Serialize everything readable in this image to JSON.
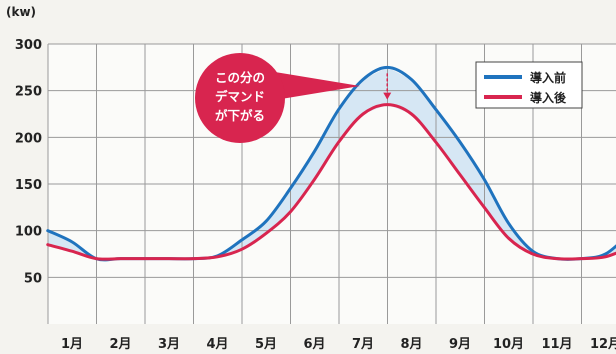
{
  "chart_data": {
    "type": "line",
    "unit_label": "(kw)",
    "categories": [
      "1月",
      "2月",
      "3月",
      "4月",
      "5月",
      "6月",
      "7月",
      "8月",
      "9月",
      "10月",
      "11月",
      "12月"
    ],
    "y_ticks": [
      300,
      250,
      200,
      150,
      100,
      50
    ],
    "ylim": [
      0,
      300
    ],
    "grid": true,
    "legend_position": "top-right",
    "series": [
      {
        "name": "導入前",
        "color": "#1f73be",
        "x": [
          0.5,
          1.0,
          1.5,
          2.0,
          2.5,
          3.0,
          3.5,
          4.0,
          4.5,
          5.0,
          5.5,
          6.0,
          6.5,
          7.0,
          7.5,
          8.0,
          8.5,
          9.0,
          9.5,
          10.0,
          10.5,
          11.0,
          11.5,
          12.0,
          12.5
        ],
        "values": [
          100,
          88,
          70,
          70,
          70,
          70,
          70,
          73,
          90,
          110,
          145,
          185,
          230,
          262,
          275,
          262,
          230,
          195,
          155,
          108,
          78,
          70,
          70,
          75,
          97
        ]
      },
      {
        "name": "導入後",
        "color": "#d8254f",
        "x": [
          0.5,
          1.0,
          1.5,
          2.0,
          2.5,
          3.0,
          3.5,
          4.0,
          4.5,
          5.0,
          5.5,
          6.0,
          6.5,
          7.0,
          7.5,
          8.0,
          8.5,
          9.0,
          9.5,
          10.0,
          10.5,
          11.0,
          11.5,
          12.0,
          12.5
        ],
        "values": [
          85,
          78,
          70,
          70,
          70,
          70,
          70,
          72,
          80,
          97,
          120,
          155,
          195,
          225,
          235,
          225,
          195,
          160,
          125,
          92,
          75,
          70,
          70,
          72,
          82
        ]
      }
    ],
    "annotation": {
      "lines": [
        "この分の",
        "デマンド",
        "が下がる"
      ],
      "color": "#d8254f"
    }
  }
}
